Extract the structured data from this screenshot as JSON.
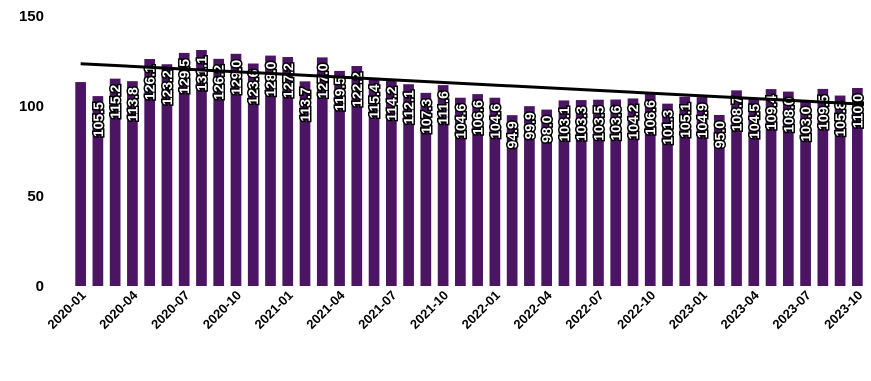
{
  "chart_data": {
    "type": "bar",
    "title": "",
    "xlabel": "",
    "ylabel": "",
    "ylim": [
      0,
      150
    ],
    "yticks": [
      0,
      50,
      100,
      150
    ],
    "grid": false,
    "legend": "none",
    "bar_color": "#4b1564",
    "trendline_color": "#000000",
    "trendline": {
      "start": 123.5,
      "end": 101.0
    },
    "categories": [
      "2020-01",
      "2020-02",
      "2020-03",
      "2020-04",
      "2020-05",
      "2020-06",
      "2020-07",
      "2020-08",
      "2020-09",
      "2020-10",
      "2020-11",
      "2020-12",
      "2021-01",
      "2021-02",
      "2021-03",
      "2021-04",
      "2021-05",
      "2021-06",
      "2021-07",
      "2021-08",
      "2021-09",
      "2021-10",
      "2021-11",
      "2021-12",
      "2022-01",
      "2022-02",
      "2022-03",
      "2022-04",
      "2022-05",
      "2022-06",
      "2022-07",
      "2022-08",
      "2022-09",
      "2022-10",
      "2022-11",
      "2022-12",
      "2023-01",
      "2023-02",
      "2023-03",
      "2023-04",
      "2023-05",
      "2023-06",
      "2023-07",
      "2023-08",
      "2023-09",
      "2023-10"
    ],
    "tick_labels": [
      "2020-01",
      "2020-04",
      "2020-07",
      "2020-10",
      "2021-01",
      "2021-04",
      "2021-07",
      "2021-10",
      "2022-01",
      "2022-04",
      "2022-07",
      "2022-10",
      "2023-01",
      "2023-04",
      "2023-07",
      "2023-10"
    ],
    "values": [
      113.3,
      105.5,
      115.2,
      113.8,
      126.1,
      123.2,
      129.5,
      131.1,
      126.2,
      129.0,
      123.6,
      128.0,
      127.2,
      113.7,
      127.0,
      119.5,
      122.2,
      115.4,
      114.2,
      112.1,
      107.3,
      111.6,
      104.6,
      106.6,
      104.6,
      94.9,
      99.9,
      98.0,
      103.1,
      103.3,
      103.5,
      103.6,
      104.2,
      106.6,
      101.3,
      105.1,
      104.9,
      95.0,
      108.7,
      104.5,
      109.4,
      108.0,
      103.0,
      109.5,
      105.8,
      110.0
    ],
    "data_labels": [
      "",
      "105.5",
      "115.2",
      "113.8",
      "126.1",
      "123.2",
      "129.5",
      "131.1",
      "126.2",
      "129.0",
      "123.6",
      "128.0",
      "127.2",
      "113.7",
      "127.0",
      "119.5",
      "122.2",
      "115.4",
      "114.2",
      "112.1",
      "107.3",
      "111.6",
      "104.6",
      "106.6",
      "104.6",
      "94.9",
      "99.9",
      "98.0",
      "103.1",
      "103.3",
      "103.5",
      "103.6",
      "104.2",
      "106.6",
      "101.3",
      "105.1",
      "104.9",
      "95.0",
      "108.7",
      "104.5",
      "109.4",
      "108.0",
      "103.0",
      "109.5",
      "105.8",
      "110.0"
    ]
  }
}
